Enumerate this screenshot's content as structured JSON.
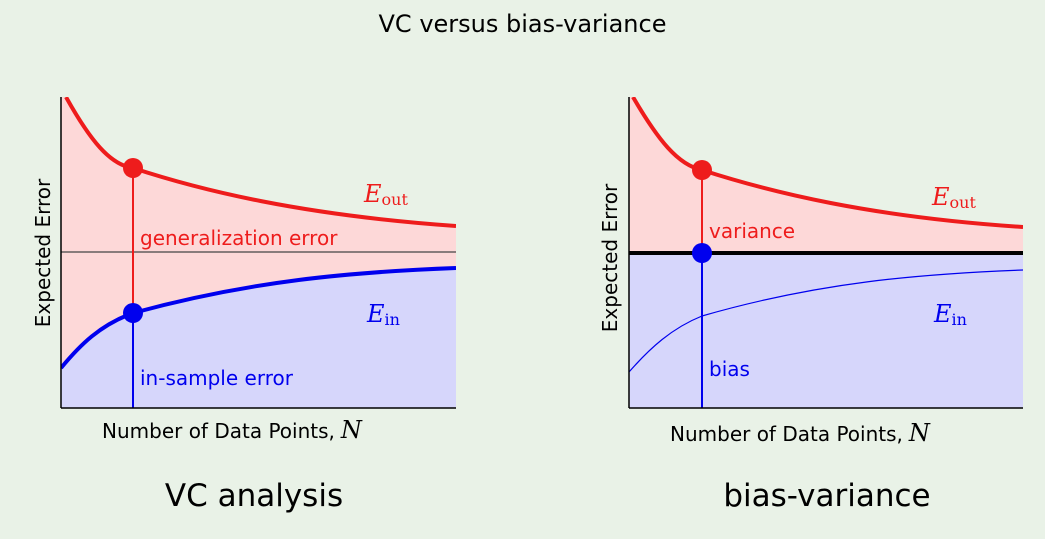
{
  "title": "VC versus bias-variance",
  "colors": {
    "background": "#e9f2e7",
    "red_curve": "#ee1c1c",
    "blue_curve": "#0000ee",
    "red_fill": "#fdd8d8",
    "blue_fill": "#d6d6fb"
  },
  "panels": [
    {
      "caption": "VC analysis",
      "y_axis_label": "Expected Error",
      "x_axis_label": "Number of Data Points,",
      "x_axis_symbol": "N",
      "e_out_label": {
        "main": "E",
        "sub": "out"
      },
      "e_in_label": {
        "main": "E",
        "sub": "in"
      },
      "upper_annotation": "generalization error",
      "lower_annotation": "in-sample error"
    },
    {
      "caption": "bias-variance",
      "y_axis_label": "Expected Error",
      "x_axis_label": "Number of Data Points,",
      "x_axis_symbol": "N",
      "e_out_label": {
        "main": "E",
        "sub": "out"
      },
      "e_in_label": {
        "main": "E",
        "sub": "in"
      },
      "upper_annotation": "variance",
      "lower_annotation": "bias"
    }
  ]
}
